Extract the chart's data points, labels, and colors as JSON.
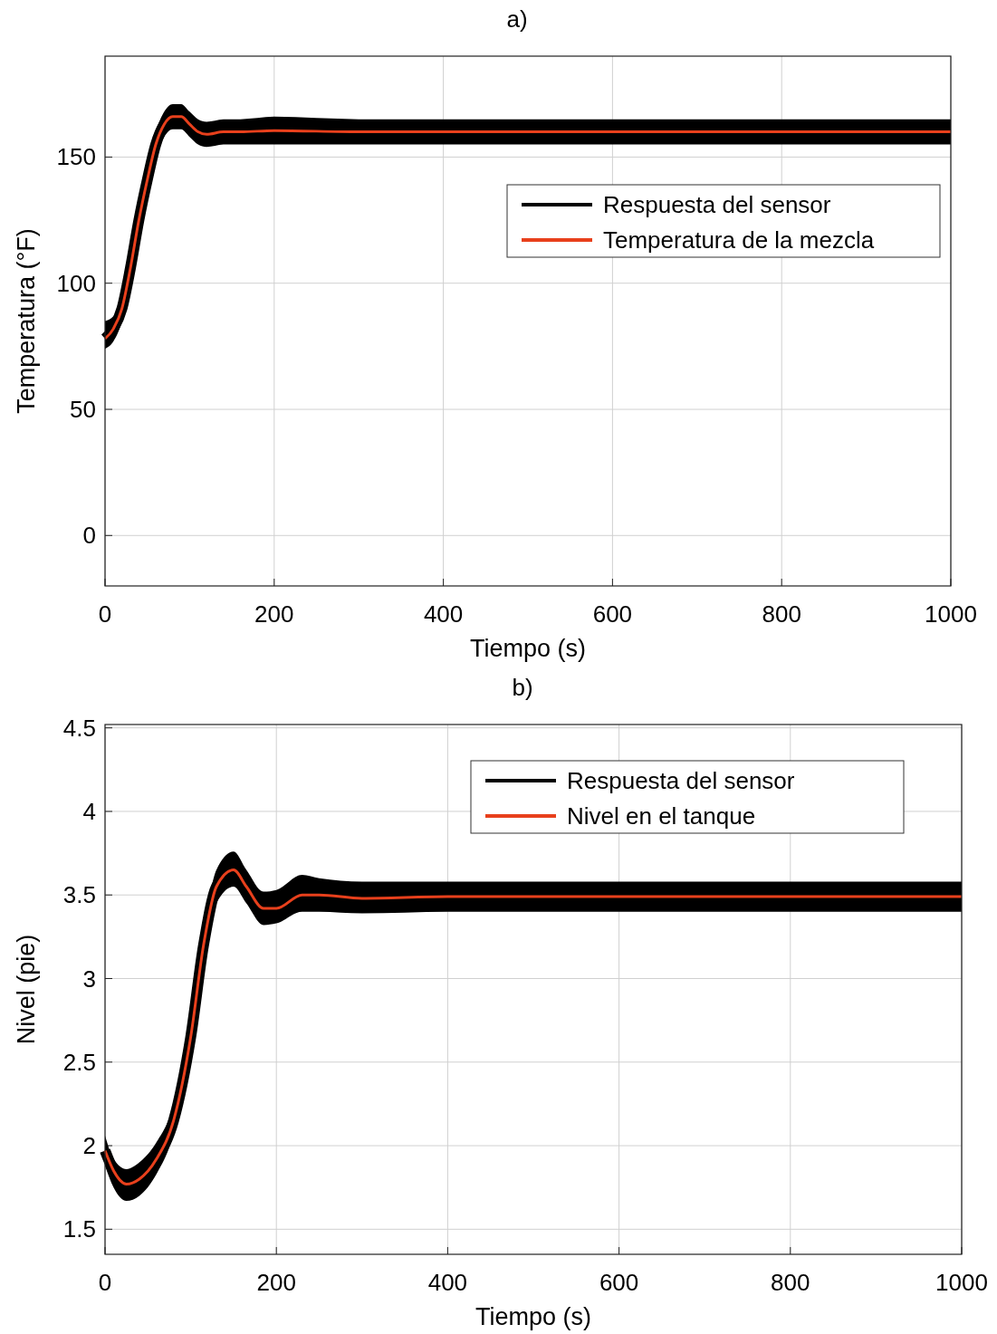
{
  "chart_data": [
    {
      "type": "line",
      "title": "a)",
      "xlabel": "Tiempo (s)",
      "ylabel": "Temperatura (°F)",
      "xlim": [
        0,
        1000
      ],
      "xticks": [
        0,
        200,
        400,
        600,
        800,
        1000
      ],
      "ylim": [
        -20,
        190
      ],
      "yticks": [
        0,
        50,
        100,
        150
      ],
      "grid": true,
      "legend": "top right",
      "x": [
        0,
        10,
        20,
        30,
        40,
        50,
        60,
        70,
        80,
        90,
        100,
        110,
        120,
        140,
        160,
        200,
        300,
        500,
        700,
        1000
      ],
      "series": [
        {
          "name": "Respuesta del sensor",
          "color": "#000000",
          "values": [
            78,
            82,
            90,
            106,
            125,
            141,
            155,
            163,
            166,
            166,
            163,
            160,
            159,
            160,
            160,
            160.5,
            160,
            160,
            160,
            160
          ],
          "lower": [
            74,
            77,
            85,
            101,
            120,
            136,
            150,
            158,
            161,
            161,
            158,
            155,
            154,
            155,
            155,
            155,
            155,
            155,
            155,
            155
          ],
          "upper": [
            85,
            87,
            95,
            111,
            130,
            146,
            160,
            168,
            171,
            171,
            168,
            165,
            164,
            165,
            165,
            166,
            165,
            165,
            165,
            165
          ]
        },
        {
          "name": "Temperatura de la mezcla",
          "color": "#e8401c",
          "values": [
            78,
            82,
            90,
            106,
            125,
            141,
            155,
            163,
            166,
            166,
            163,
            160,
            159,
            160,
            160,
            160.5,
            160,
            160,
            160,
            160
          ]
        }
      ]
    },
    {
      "type": "line",
      "title": "b)",
      "xlabel": "Tiempo (s)",
      "ylabel": "Nivel (pie)",
      "xlim": [
        0,
        1000
      ],
      "xticks": [
        0,
        200,
        400,
        600,
        800,
        1000
      ],
      "ylim": [
        1.35,
        4.52
      ],
      "yticks": [
        1.5,
        2,
        2.5,
        3,
        3.5,
        4,
        4.5
      ],
      "grid": true,
      "legend": "top right",
      "x": [
        0,
        10,
        25,
        40,
        60,
        80,
        100,
        115,
        130,
        150,
        165,
        185,
        200,
        230,
        250,
        300,
        400,
        600,
        800,
        1000
      ],
      "series": [
        {
          "name": "Respuesta del sensor",
          "color": "#000000",
          "values": [
            1.97,
            1.85,
            1.77,
            1.8,
            1.92,
            2.15,
            2.65,
            3.2,
            3.55,
            3.65,
            3.55,
            3.42,
            3.42,
            3.5,
            3.5,
            3.48,
            3.49,
            3.49,
            3.49,
            3.49
          ],
          "lower": [
            1.88,
            1.75,
            1.67,
            1.7,
            1.83,
            2.07,
            2.57,
            3.12,
            3.45,
            3.55,
            3.45,
            3.32,
            3.33,
            3.4,
            3.4,
            3.39,
            3.4,
            3.4,
            3.4,
            3.4
          ],
          "upper": [
            2.06,
            1.92,
            1.86,
            1.9,
            2.02,
            2.24,
            2.73,
            3.28,
            3.65,
            3.76,
            3.65,
            3.52,
            3.53,
            3.62,
            3.6,
            3.58,
            3.58,
            3.58,
            3.58,
            3.58
          ]
        },
        {
          "name": "Nivel en el tanque",
          "color": "#e8401c",
          "values": [
            1.97,
            1.85,
            1.77,
            1.8,
            1.92,
            2.15,
            2.65,
            3.2,
            3.55,
            3.65,
            3.55,
            3.42,
            3.42,
            3.5,
            3.5,
            3.48,
            3.49,
            3.49,
            3.49,
            3.49
          ]
        }
      ]
    }
  ]
}
